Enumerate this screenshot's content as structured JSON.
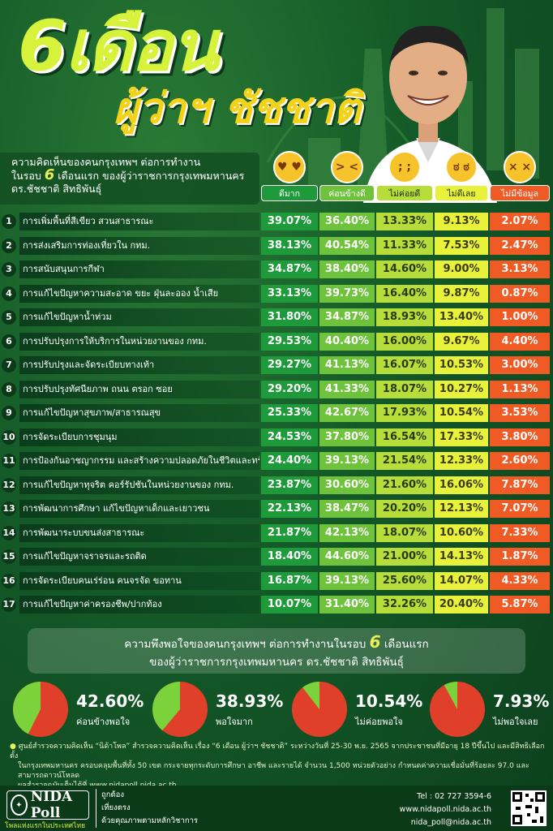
{
  "header": {
    "title_line1": "6เดือน",
    "title_line2": "ผู้ว่าฯ ชัชชาติ",
    "intro_line1": "ความคิดเห็นของคนกรุงเทพฯ ต่อการทำงาน",
    "intro_line2a": "ในรอบ ",
    "intro_six": "6",
    "intro_line2b": " เดือนแรก ของผู้ว่าราชการกรุงเทพมหานคร",
    "intro_line3": "ดร.ชัชชาติ สิทธิพันธุ์"
  },
  "legend": [
    {
      "label": "ดีมาก",
      "face": "♥ ♥",
      "icon": "heart-eyes-emoji-icon",
      "color": "#1f9a3a"
    },
    {
      "label": "ค่อนข้างดี",
      "face": "> <",
      "icon": "squint-emoji-icon",
      "color": "#6ec23c"
    },
    {
      "label": "ไม่ค่อยดี",
      "face": "; ;",
      "icon": "crying-emoji-icon",
      "color": "#b6dd3a"
    },
    {
      "label": "ไม่ดีเลย",
      "face": "ಠ ಠ",
      "icon": "angry-emoji-icon",
      "color": "#e8f23a"
    },
    {
      "label": "ไม่มีข้อมูล",
      "face": "× ×",
      "icon": "dizzy-emoji-icon",
      "color": "#f05a24"
    }
  ],
  "chart_data": [
    {
      "type": "table",
      "columns": [
        "ดีมาก",
        "ค่อนข้างดี",
        "ไม่ค่อยดี",
        "ไม่ดีเลย",
        "ไม่มีข้อมูล"
      ],
      "rows": [
        {
          "n": "1",
          "label": "การเพิ่มพื้นที่สีเขียว สวนสาธารณะ",
          "values": [
            "39.07%",
            "36.40%",
            "13.33%",
            "9.13%",
            "2.07%"
          ]
        },
        {
          "n": "2",
          "label": "การส่งเสริมการท่องเที่ยวใน กทม.",
          "values": [
            "38.13%",
            "40.54%",
            "11.33%",
            "7.53%",
            "2.47%"
          ]
        },
        {
          "n": "3",
          "label": "การสนับสนุนการกีฬา",
          "values": [
            "34.87%",
            "38.40%",
            "14.60%",
            "9.00%",
            "3.13%"
          ]
        },
        {
          "n": "4",
          "label": "การแก้ไขปัญหาความสะอาด ขยะ ฝุ่นละออง น้ำเสีย",
          "values": [
            "33.13%",
            "39.73%",
            "16.40%",
            "9.87%",
            "0.87%"
          ]
        },
        {
          "n": "5",
          "label": "การแก้ไขปัญหาน้ำท่วม",
          "values": [
            "31.80%",
            "34.87%",
            "18.93%",
            "13.40%",
            "1.00%"
          ]
        },
        {
          "n": "6",
          "label": "การปรับปรุงการให้บริการในหน่วยงานของ กทม.",
          "values": [
            "29.53%",
            "40.40%",
            "16.00%",
            "9.67%",
            "4.40%"
          ]
        },
        {
          "n": "7",
          "label": "การปรับปรุงและจัดระเบียบทางเท้า",
          "values": [
            "29.27%",
            "41.13%",
            "16.07%",
            "10.53%",
            "3.00%"
          ]
        },
        {
          "n": "8",
          "label": "การปรับปรุงทัศนียภาพ ถนน ตรอก ซอย",
          "values": [
            "29.20%",
            "41.33%",
            "18.07%",
            "10.27%",
            "1.13%"
          ]
        },
        {
          "n": "9",
          "label": "การแก้ไขปัญหาสุขภาพ/สาธารณสุข",
          "values": [
            "25.33%",
            "42.67%",
            "17.93%",
            "10.54%",
            "3.53%"
          ]
        },
        {
          "n": "10",
          "label": "การจัดระเบียบการชุมนุม",
          "values": [
            "24.53%",
            "37.80%",
            "16.54%",
            "17.33%",
            "3.80%"
          ]
        },
        {
          "n": "11",
          "label": "การป้องกันอาชญากรรม และสร้างความปลอดภัยในชีวิตและทรัพย์สิน",
          "values": [
            "24.40%",
            "39.13%",
            "21.54%",
            "12.33%",
            "2.60%"
          ]
        },
        {
          "n": "12",
          "label": "การแก้ไขปัญหาทุจริต คอร์รัปชันในหน่วยงานของ กทม.",
          "values": [
            "23.87%",
            "30.60%",
            "21.60%",
            "16.06%",
            "7.87%"
          ]
        },
        {
          "n": "13",
          "label": "การพัฒนาการศึกษา แก้ไขปัญหาเด็กและเยาวชน",
          "values": [
            "22.13%",
            "38.47%",
            "20.20%",
            "12.13%",
            "7.07%"
          ]
        },
        {
          "n": "14",
          "label": "การพัฒนาระบบขนส่งสาธารณะ",
          "values": [
            "21.87%",
            "42.13%",
            "18.07%",
            "10.60%",
            "7.33%"
          ]
        },
        {
          "n": "15",
          "label": "การแก้ไขปัญหาจราจรและรถติด",
          "values": [
            "18.40%",
            "44.60%",
            "21.00%",
            "14.13%",
            "1.87%"
          ]
        },
        {
          "n": "16",
          "label": "การจัดระเบียบคนเร่ร่อน คนจรจัด ขอทาน",
          "values": [
            "16.87%",
            "39.13%",
            "25.60%",
            "14.07%",
            "4.33%"
          ]
        },
        {
          "n": "17",
          "label": "การแก้ไขปัญหาค่าครองชีพ/ปากท้อง",
          "values": [
            "10.07%",
            "31.40%",
            "32.26%",
            "20.40%",
            "5.87%"
          ]
        }
      ]
    },
    {
      "type": "pie",
      "title_line1a": "ความพึงพอใจของคนกรุงเทพฯ ต่อการทำงานในรอบ ",
      "title_six": "6",
      "title_line1b": " เดือนแรก",
      "title_line2": "ของผู้ว่าราชการกรุงเทพมหานคร ดร.ชัชชาติ สิทธิพันธุ์",
      "slices": [
        {
          "label": "ค่อนข้างพอใจ",
          "value": 42.6,
          "text": "42.60%"
        },
        {
          "label": "พอใจมาก",
          "value": 38.93,
          "text": "38.93%"
        },
        {
          "label": "ไม่ค่อยพอใจ",
          "value": 10.54,
          "text": "10.54%"
        },
        {
          "label": "ไม่พอใจเลย",
          "value": 7.93,
          "text": "7.93%"
        }
      ],
      "colors": {
        "highlight": "#7cd23a",
        "rest": "#e0402a"
      }
    }
  ],
  "note": {
    "line1": "ศูนย์สำรวจความคิดเห็น “นิด้าโพล” สำรวจความคิดเห็น เรื่อง “6 เดือน ผู้ว่าฯ ชัชชาติ” ระหว่างวันที่ 25-30 พ.ย. 2565 จากประชาชนที่มีอายุ 18 ปีขึ้นไป และมีสิทธิเลือกตั้ง",
    "line2": "ในกรุงเทพมหานคร ครอบคลุมพื้นที่ทั้ง 50 เขต กระจายทุกระดับการศึกษา อาชีพ และรายได้ จำนวน 1,500 หน่วยตัวอย่าง กำหนดค่าความเชื่อมั่นที่ร้อยละ 97.0 และสามารถดาวน์โหลด",
    "line3": "ผลสำรวจฉบับเต็มได้ที่ www.nidapoll.nida.ac.th"
  },
  "footer": {
    "logo": "NIDA Poll",
    "tagline": "โพลแห่งแรกในประเทศไทย",
    "mid": [
      "ถูกต้อง",
      "เที่ยงตรง",
      "ด้วยคุณภาพตามหลักวิชาการ"
    ],
    "tel": "Tel : 02 727 3594-6",
    "web": "www.nidapoll.nida.ac.th",
    "email": "nida_poll@nida.ac.th"
  }
}
